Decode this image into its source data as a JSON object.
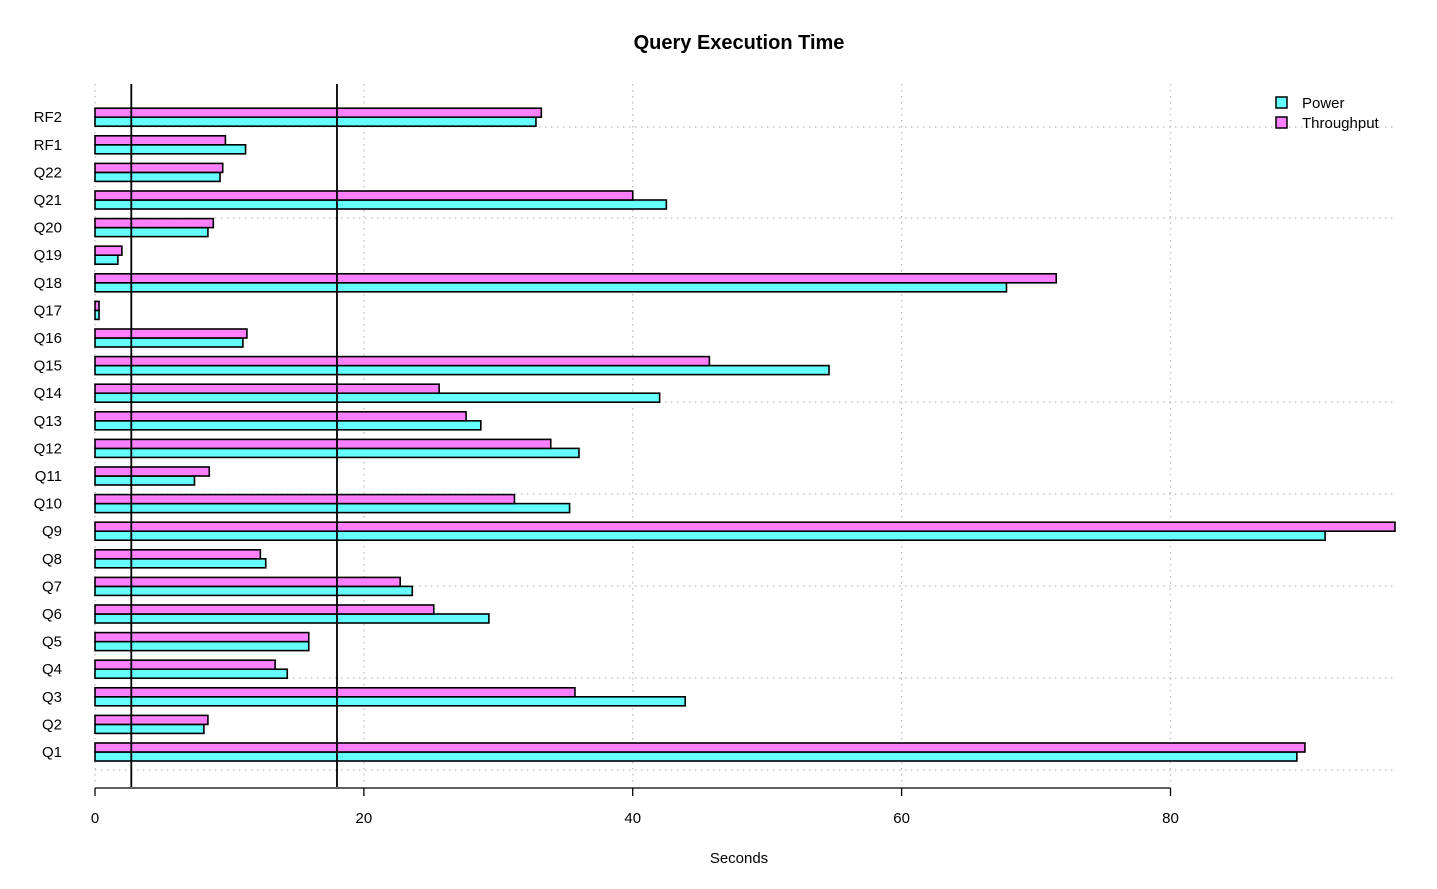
{
  "chart_data": {
    "type": "bar",
    "orientation": "horizontal",
    "title": "Query Execution Time",
    "xlabel": "Seconds",
    "ylabel": "",
    "xlim": [
      0,
      96.7
    ],
    "x_ticks": [
      0,
      20,
      40,
      60,
      80
    ],
    "grid": true,
    "legend_position": "top-right",
    "categories": [
      "Q1",
      "Q2",
      "Q3",
      "Q4",
      "Q5",
      "Q6",
      "Q7",
      "Q8",
      "Q9",
      "Q10",
      "Q11",
      "Q12",
      "Q13",
      "Q14",
      "Q15",
      "Q16",
      "Q17",
      "Q18",
      "Q19",
      "Q20",
      "Q21",
      "Q22",
      "RF1",
      "RF2"
    ],
    "series": [
      {
        "name": "Power",
        "color": "#66FFFF",
        "values": [
          89.4,
          8.1,
          43.9,
          14.3,
          15.9,
          29.3,
          23.6,
          12.7,
          91.5,
          35.3,
          7.4,
          36.0,
          28.7,
          42.0,
          54.6,
          11.0,
          0.3,
          67.8,
          1.7,
          8.4,
          42.5,
          9.3,
          11.2,
          32.8
        ]
      },
      {
        "name": "Throughput",
        "color": "#FF80FF",
        "values": [
          90.0,
          8.4,
          35.7,
          13.4,
          15.9,
          25.2,
          22.7,
          12.3,
          96.7,
          31.2,
          8.5,
          33.9,
          27.6,
          25.6,
          45.7,
          11.3,
          0.3,
          71.5,
          2.0,
          8.8,
          40.0,
          9.5,
          9.7,
          33.2
        ]
      }
    ],
    "reference_lines": [
      2.7,
      18.0
    ]
  }
}
